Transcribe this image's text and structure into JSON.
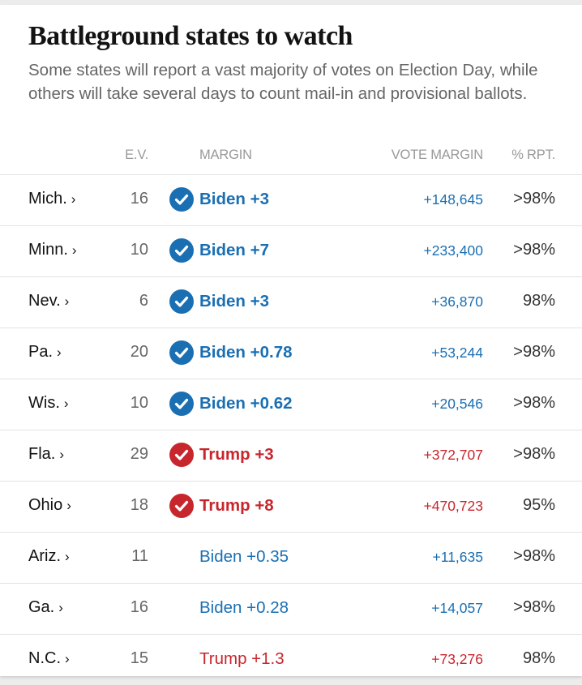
{
  "title": "Battleground states to watch",
  "subtitle": "Some states will report a vast majority of votes on Election Day, while others will take several days to count mail-in and provisional ballots.",
  "columns": {
    "ev": "E.V.",
    "margin": "MARGIN",
    "vote_margin": "VOTE MARGIN",
    "pct_reported": "% RPT."
  },
  "colors": {
    "dem": "#1a6fb3",
    "rep": "#c8262d"
  },
  "chevron": "›",
  "rows": [
    {
      "state": "Mich.",
      "ev": "16",
      "margin": "Biden +3",
      "party": "dem",
      "called": true,
      "vote_margin": "+148,645",
      "rpt": ">98%"
    },
    {
      "state": "Minn.",
      "ev": "10",
      "margin": "Biden +7",
      "party": "dem",
      "called": true,
      "vote_margin": "+233,400",
      "rpt": ">98%"
    },
    {
      "state": "Nev.",
      "ev": "6",
      "margin": "Biden +3",
      "party": "dem",
      "called": true,
      "vote_margin": "+36,870",
      "rpt": "98%"
    },
    {
      "state": "Pa.",
      "ev": "20",
      "margin": "Biden +0.78",
      "party": "dem",
      "called": true,
      "vote_margin": "+53,244",
      "rpt": ">98%"
    },
    {
      "state": "Wis.",
      "ev": "10",
      "margin": "Biden +0.62",
      "party": "dem",
      "called": true,
      "vote_margin": "+20,546",
      "rpt": ">98%"
    },
    {
      "state": "Fla.",
      "ev": "29",
      "margin": "Trump +3",
      "party": "rep",
      "called": true,
      "vote_margin": "+372,707",
      "rpt": ">98%"
    },
    {
      "state": "Ohio",
      "ev": "18",
      "margin": "Trump +8",
      "party": "rep",
      "called": true,
      "vote_margin": "+470,723",
      "rpt": "95%"
    },
    {
      "state": "Ariz.",
      "ev": "11",
      "margin": "Biden +0.35",
      "party": "dem",
      "called": false,
      "vote_margin": "+11,635",
      "rpt": ">98%"
    },
    {
      "state": "Ga.",
      "ev": "16",
      "margin": "Biden +0.28",
      "party": "dem",
      "called": false,
      "vote_margin": "+14,057",
      "rpt": ">98%"
    },
    {
      "state": "N.C.",
      "ev": "15",
      "margin": "Trump +1.3",
      "party": "rep",
      "called": false,
      "vote_margin": "+73,276",
      "rpt": "98%"
    }
  ]
}
